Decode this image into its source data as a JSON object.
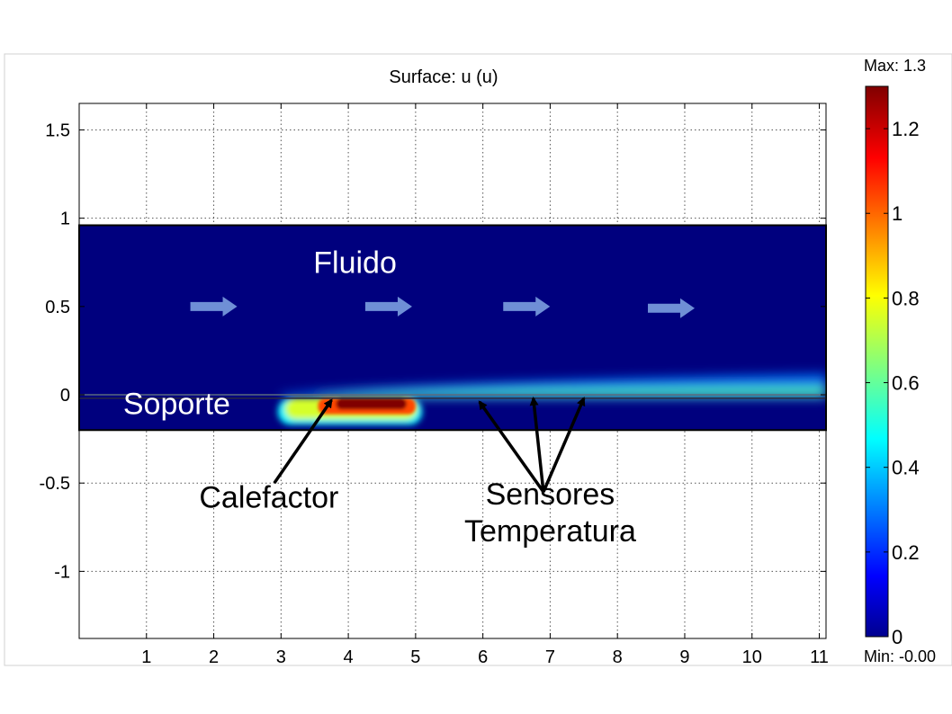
{
  "chart_data": {
    "type": "heatmap",
    "title": "Surface: u (u)",
    "xlabel": "",
    "ylabel": "",
    "xlim": [
      0,
      11.1
    ],
    "ylim": [
      -1.38,
      1.65
    ],
    "x_ticks": [
      1,
      2,
      3,
      4,
      5,
      6,
      7,
      8,
      9,
      10,
      11
    ],
    "y_ticks": [
      1.5,
      1,
      0.5,
      0,
      -0.5,
      -1
    ],
    "x_tick_labels": [
      "1",
      "2",
      "3",
      "4",
      "5",
      "6",
      "7",
      "8",
      "9",
      "10",
      "11"
    ],
    "y_tick_labels": [
      "1.5",
      "1",
      "0.5",
      "0",
      "-0.5",
      "-1"
    ],
    "grid": true,
    "colormap": "jet",
    "colorbar": {
      "max_label": "Max: 1.3",
      "min_label": "Min: -0.00",
      "range": [
        0,
        1.3
      ],
      "ticks": [
        1.2,
        1,
        0.8,
        0.6,
        0.4,
        0.2,
        0
      ],
      "tick_labels": [
        "1.2",
        "1",
        "0.8",
        "0.6",
        "0.4",
        "0.2",
        "0"
      ]
    },
    "domains": [
      {
        "name": "fluid",
        "x": [
          0,
          11.1
        ],
        "y": [
          -0.02,
          0.96
        ],
        "background_value": 0.02
      },
      {
        "name": "support",
        "x": [
          0,
          11.1
        ],
        "y": [
          -0.2,
          -0.02
        ],
        "background_value": 0.05
      }
    ],
    "hotspots": [
      {
        "region": "heater",
        "x": [
          3.55,
          5.0
        ],
        "y": [
          -0.11,
          -0.02
        ],
        "value": 1.3
      },
      {
        "region": "heated-support",
        "x": [
          2.95,
          5.1
        ],
        "y": [
          -0.17,
          -0.02
        ],
        "value": 0.75
      },
      {
        "region": "boundary-layer",
        "x": [
          3.0,
          11.1
        ],
        "y": [
          -0.02,
          0.12
        ],
        "value": 0.3
      }
    ],
    "annotations": [
      {
        "id": "fluido",
        "text": "Fluido",
        "x": 4.1,
        "y": 0.69,
        "color": "#ffffff"
      },
      {
        "id": "soporte",
        "text": "Soporte",
        "x": 1.45,
        "y": -0.11,
        "color": "#ffffff"
      },
      {
        "id": "calefactor",
        "text": "Calefactor",
        "x": 2.82,
        "y": -0.64,
        "color": "#000000"
      },
      {
        "id": "sensores",
        "text": "Sensores",
        "x": 7.0,
        "y": -0.62,
        "color": "#000000"
      },
      {
        "id": "temperatura",
        "text": "Temperatura",
        "x": 7.0,
        "y": -0.83,
        "color": "#000000"
      }
    ],
    "arrows": [
      {
        "id": "arrow-calefactor",
        "from": [
          2.9,
          -0.5
        ],
        "to": [
          3.75,
          -0.03
        ]
      },
      {
        "id": "arrow-sensor-1",
        "from": [
          6.9,
          -0.55
        ],
        "to": [
          5.95,
          -0.04
        ]
      },
      {
        "id": "arrow-sensor-2",
        "from": [
          6.9,
          -0.55
        ],
        "to": [
          6.75,
          -0.02
        ]
      },
      {
        "id": "arrow-sensor-3",
        "from": [
          6.9,
          -0.55
        ],
        "to": [
          7.5,
          -0.02
        ]
      }
    ],
    "flow_arrows": [
      {
        "x": 2.0,
        "y": 0.5
      },
      {
        "x": 4.6,
        "y": 0.5
      },
      {
        "x": 6.65,
        "y": 0.5
      },
      {
        "x": 8.8,
        "y": 0.49
      }
    ],
    "colors": {
      "fluid": "#00007e",
      "arrow_fill": "#6f8fd6",
      "support_line": "#5b6b7e"
    }
  }
}
